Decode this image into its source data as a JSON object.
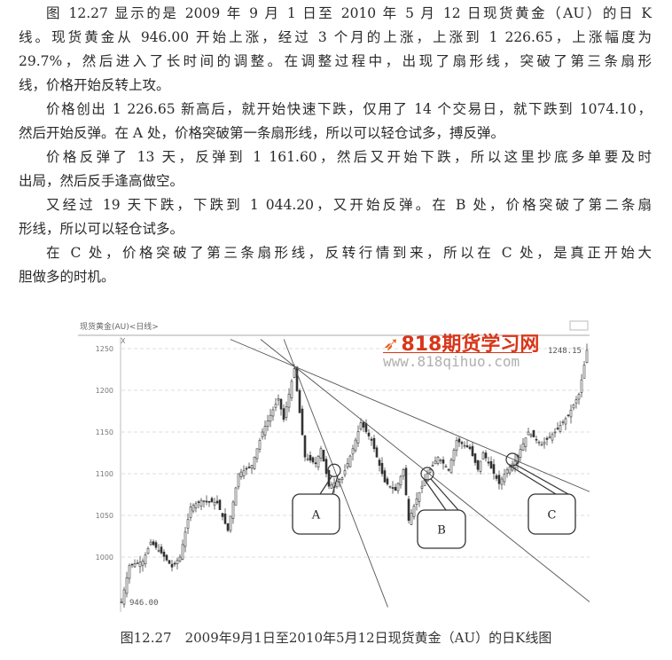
{
  "paragraphs": [
    [
      "图 12.27 显示的是 2009 年 9 月 1 日至 2010 年 5 月 12 日现货黄金（AU）的日 K",
      "线。现货黄金从 946.00 开始上涨，经过 3 个月的上涨，上涨到 1 226.65，上涨幅度为",
      "29.7%，然后进入了长时间的调整。在调整过程中，出现了扇形线，突破了第三条扇形",
      "线，价格开始反转上攻。"
    ],
    [
      "价格创出 1 226.65 新高后，就开始快速下跌，仅用了 14 个交易日，就下跌到 1074.10，",
      "然后开始反弹。在 A 处，价格突破第一条扇形线，所以可以轻仓试多，搏反弹。"
    ],
    [
      "价格反弹了 13 天，反弹到 1 161.60，然后又开始下跌，所以这里抄底多单要及时",
      "出局，然后反手逢高做空。"
    ],
    [
      "又经过 19 天下跌，下跌到 1 044.20，又开始反弹。在 B 处，价格突破了第二条扇",
      "形线，所以可以轻仓试多。"
    ],
    [
      "在 C 处，价格突破了第三条扇形线，反转行情到来，所以在 C 处，是真正开始大",
      "胆做多的时机。"
    ]
  ],
  "figure": {
    "caption": "图12.27　2009年9月1日至2010年5月12日现货黄金（AU）的日K线图",
    "watermark_logo": "818期货学习网",
    "watermark_url": "www.818qihuo.com"
  },
  "chart_data": {
    "type": "candlestick",
    "title": "现货黄金(AU)<日线>",
    "y_unit_label": "X",
    "yticks": [
      1000,
      1050,
      1100,
      1150,
      1200,
      1250
    ],
    "ylim": [
      940,
      1258
    ],
    "grid": true,
    "high_label": "1248.15",
    "low_label": "946.00",
    "trend_points": [
      [
        0,
        946
      ],
      [
        3,
        990
      ],
      [
        8,
        995
      ],
      [
        11,
        1018
      ],
      [
        15,
        1005
      ],
      [
        19,
        988
      ],
      [
        22,
        1000
      ],
      [
        26,
        1060
      ],
      [
        30,
        1068
      ],
      [
        36,
        1065
      ],
      [
        40,
        1032
      ],
      [
        44,
        1100
      ],
      [
        49,
        1110
      ],
      [
        53,
        1150
      ],
      [
        59,
        1190
      ],
      [
        61,
        1165
      ],
      [
        65,
        1226
      ],
      [
        69,
        1120
      ],
      [
        73,
        1112
      ],
      [
        75,
        1130
      ],
      [
        78,
        1085
      ],
      [
        83,
        1095
      ],
      [
        87,
        1130
      ],
      [
        90,
        1161
      ],
      [
        94,
        1140
      ],
      [
        99,
        1090
      ],
      [
        103,
        1080
      ],
      [
        106,
        1105
      ],
      [
        108,
        1044
      ],
      [
        111,
        1070
      ],
      [
        115,
        1100
      ],
      [
        119,
        1120
      ],
      [
        123,
        1105
      ],
      [
        126,
        1140
      ],
      [
        131,
        1130
      ],
      [
        134,
        1105
      ],
      [
        136,
        1125
      ],
      [
        142,
        1088
      ],
      [
        145,
        1105
      ],
      [
        148,
        1115
      ],
      [
        153,
        1150
      ],
      [
        158,
        1135
      ],
      [
        163,
        1150
      ],
      [
        168,
        1170
      ],
      [
        172,
        1195
      ],
      [
        175,
        1248
      ]
    ],
    "fan_origin": [
      65,
      1226
    ],
    "fan_lines": [
      {
        "through": [
          80,
          1104
        ]
      },
      {
        "through": [
          115,
          1100
        ]
      },
      {
        "through": [
          147,
          1117
        ]
      }
    ],
    "callouts": [
      {
        "label": "A",
        "at": [
          80,
          1104
        ]
      },
      {
        "label": "B",
        "at": [
          115,
          1100
        ]
      },
      {
        "label": "C",
        "at": [
          147,
          1117
        ]
      }
    ]
  }
}
